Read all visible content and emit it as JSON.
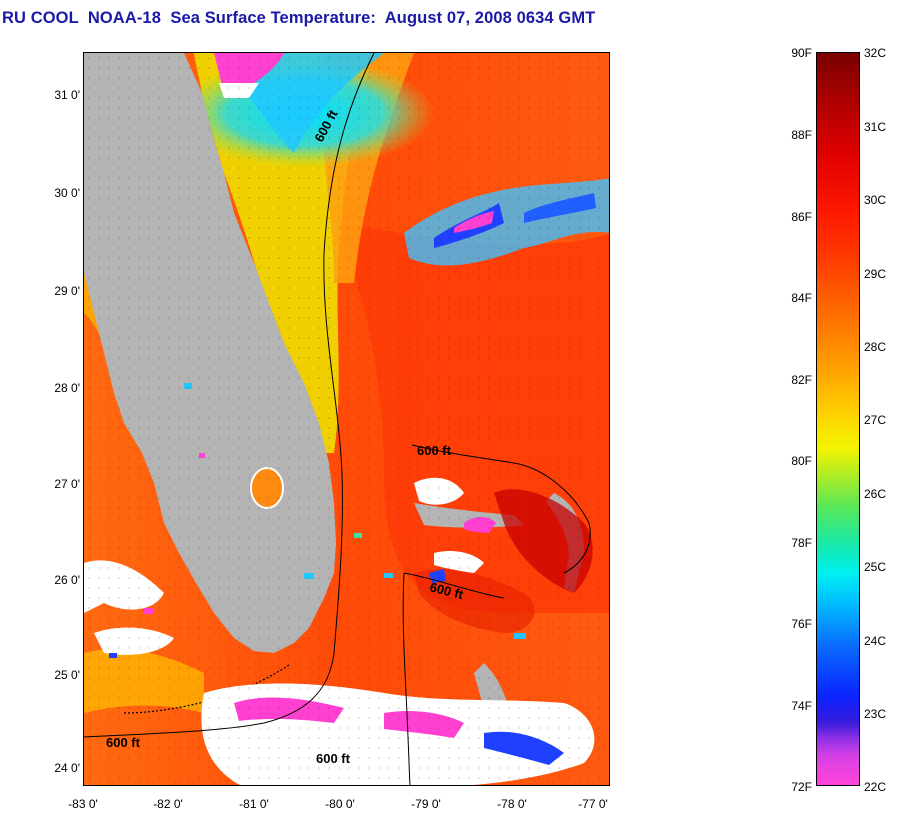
{
  "title": "RU COOL  NOAA-18  Sea Surface Temperature:  August 07, 2008 0634 GMT",
  "map": {
    "lat_ticks": [
      "31 0'",
      "30 0'",
      "29 0'",
      "28 0'",
      "27 0'",
      "26 0'",
      "25 0'",
      "24 0'"
    ],
    "lon_ticks": [
      "-83 0'",
      "-82 0'",
      "-81 0'",
      "-80 0'",
      "-79 0'",
      "-78 0'",
      "-77 0'"
    ],
    "contour_labels": [
      "600 ft",
      "600 ft",
      "600 ft",
      "600 ft",
      "600 ft"
    ],
    "colors": {
      "land": "#b4b4b4",
      "cloud": "#ffffff",
      "warm_water": "#ff5a10",
      "hot_water": "#c80000",
      "cool_water": "#00c8ff",
      "cold_water": "#ff40d0"
    }
  },
  "colorbar": {
    "fahrenheit": [
      "90F",
      "88F",
      "86F",
      "84F",
      "82F",
      "80F",
      "78F",
      "76F",
      "74F",
      "72F"
    ],
    "celsius": [
      "32C",
      "31C",
      "30C",
      "29C",
      "28C",
      "27C",
      "26C",
      "25C",
      "24C",
      "23C",
      "22C"
    ]
  }
}
